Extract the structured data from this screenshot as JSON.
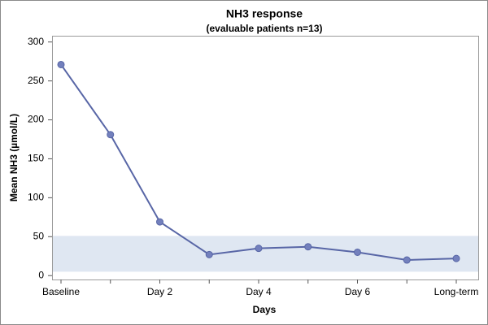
{
  "chart_data": {
    "type": "line",
    "title": "NH3 response",
    "subtitle": "(evaluable patients n=13)",
    "x_label": "Days",
    "y_label": "Mean NH3 (µmol/L)",
    "categories": [
      "Baseline",
      null,
      "Day 2",
      null,
      "Day 4",
      null,
      "Day 6",
      null,
      "Long-term"
    ],
    "series": [
      {
        "name": "Mean NH3",
        "color": "#5866a6",
        "values": [
          271,
          181,
          69,
          27,
          35,
          37,
          30,
          20,
          22
        ]
      }
    ],
    "shaded_range": [
      5,
      51
    ],
    "shaded_color": "#dfe7f2",
    "ylim": [
      -5,
      308
    ],
    "yticks": [
      0,
      50,
      100,
      150,
      200,
      250,
      300
    ],
    "grid": false
  }
}
